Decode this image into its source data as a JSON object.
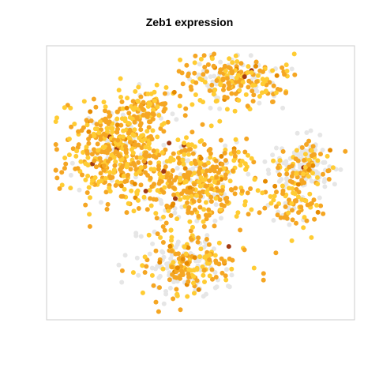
{
  "chart_data": {
    "type": "scatter",
    "title": "Zeb1 expression",
    "xlabel": "",
    "ylabel": "",
    "grid": false,
    "axes_visible": false,
    "legend": "none",
    "colors": {
      "background_cells": "#e6e6e6",
      "low": "#ffcc33",
      "mid": "#f5a623",
      "high": "#e68a00",
      "very_high": "#a33a12",
      "frame": "#cccccc"
    },
    "clusters": [
      {
        "name": "left",
        "cx": 0.22,
        "cy": 0.62,
        "rx": 0.14,
        "ry": 0.15,
        "n": 430,
        "expressed_fraction": 0.93
      },
      {
        "name": "left-upper-arm",
        "cx": 0.33,
        "cy": 0.78,
        "rx": 0.08,
        "ry": 0.06,
        "n": 90,
        "expressed_fraction": 0.9
      },
      {
        "name": "top",
        "cx": 0.6,
        "cy": 0.88,
        "rx": 0.15,
        "ry": 0.09,
        "n": 230,
        "expressed_fraction": 0.72
      },
      {
        "name": "center",
        "cx": 0.48,
        "cy": 0.5,
        "rx": 0.16,
        "ry": 0.15,
        "n": 420,
        "expressed_fraction": 0.8
      },
      {
        "name": "right",
        "cx": 0.84,
        "cy": 0.57,
        "rx": 0.1,
        "ry": 0.08,
        "n": 180,
        "expressed_fraction": 0.38
      },
      {
        "name": "right-lower",
        "cx": 0.8,
        "cy": 0.42,
        "rx": 0.06,
        "ry": 0.09,
        "n": 80,
        "expressed_fraction": 0.82
      },
      {
        "name": "bottom",
        "cx": 0.45,
        "cy": 0.2,
        "rx": 0.14,
        "ry": 0.1,
        "n": 260,
        "expressed_fraction": 0.6
      }
    ]
  }
}
